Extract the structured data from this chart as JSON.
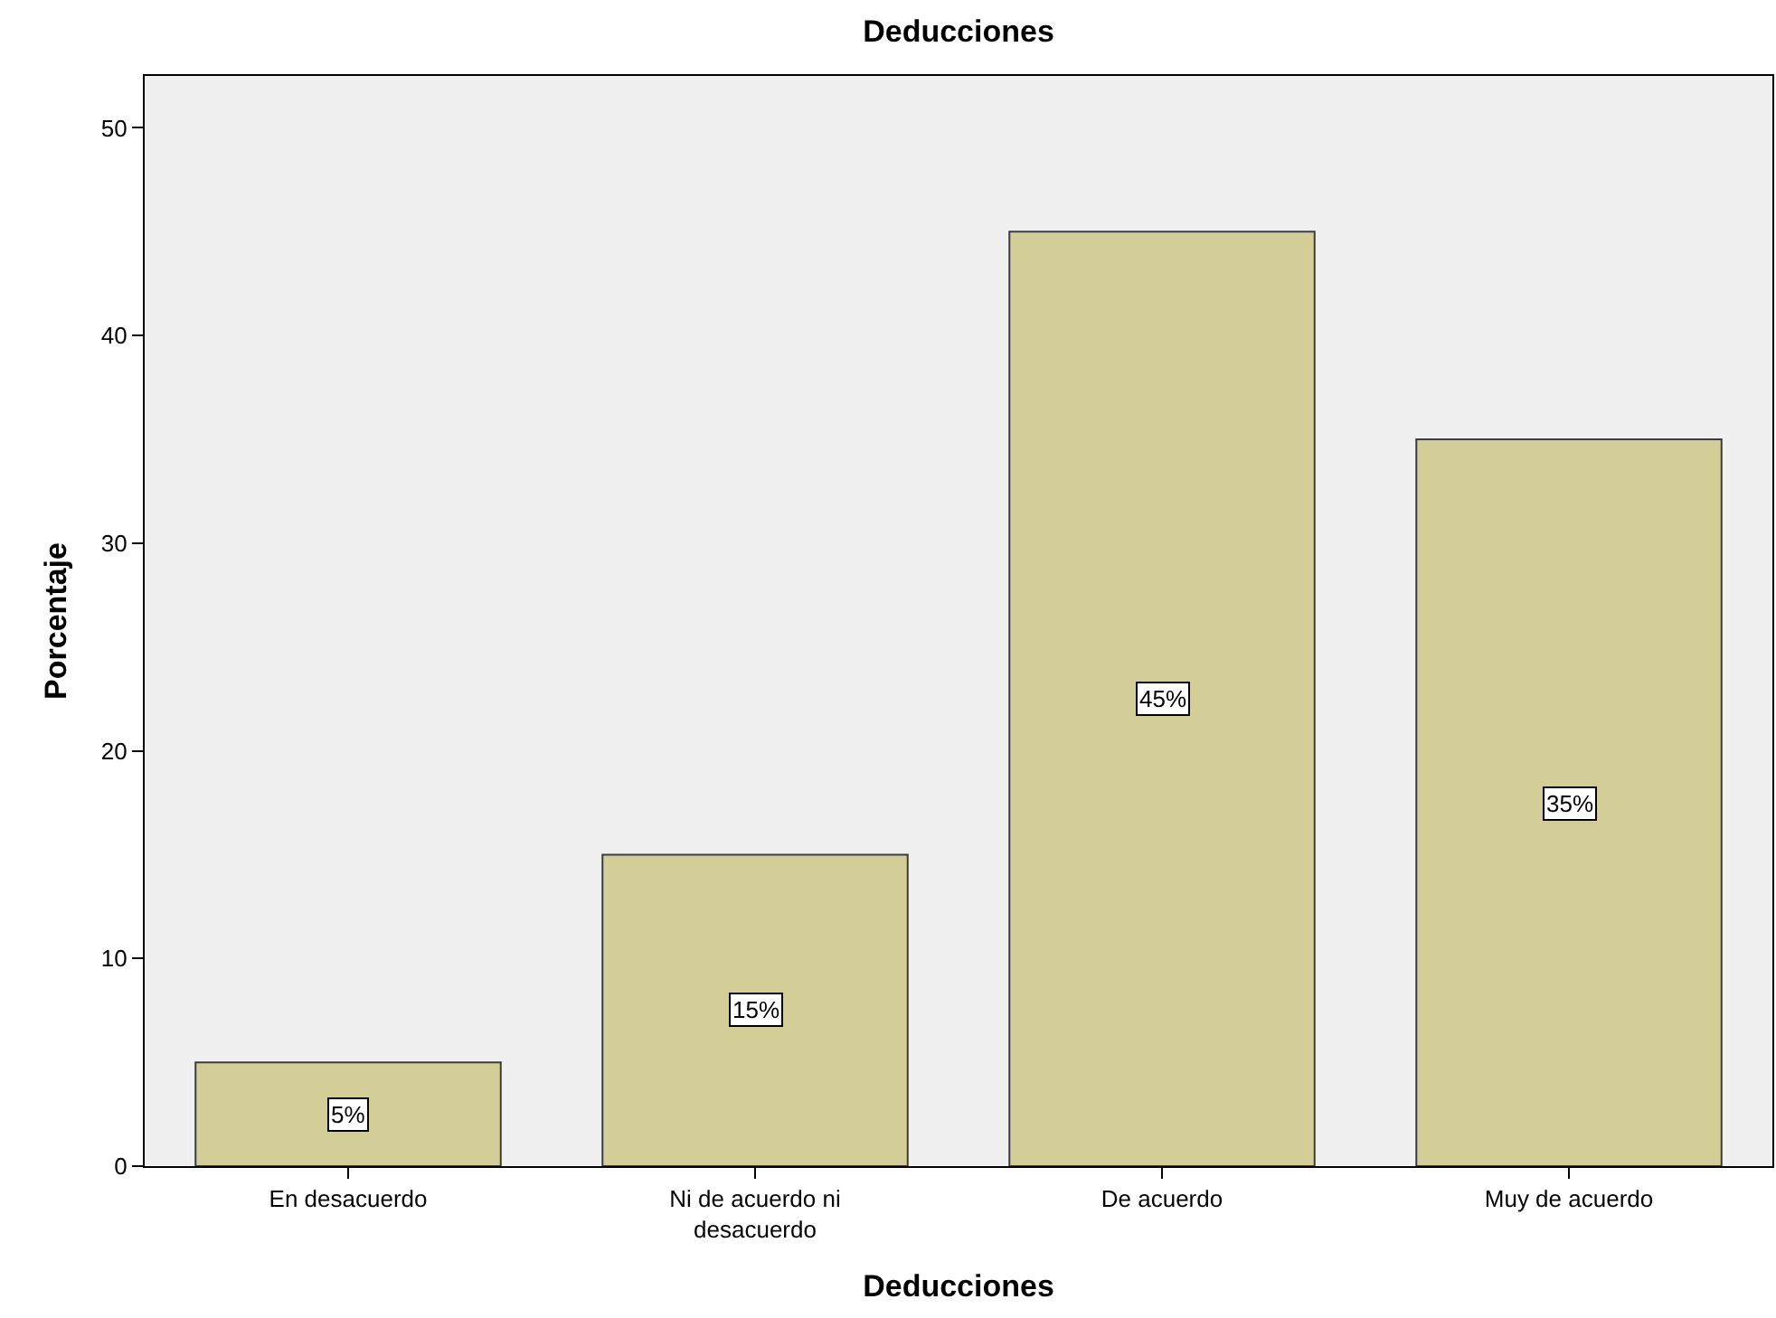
{
  "chart_data": {
    "type": "bar",
    "title": "Deducciones",
    "xlabel": "Deducciones",
    "ylabel": "Porcentaje",
    "categories": [
      "En desacuerdo",
      "Ni de acuerdo ni desacuerdo",
      "De acuerdo",
      "Muy de acuerdo"
    ],
    "values": [
      5,
      15,
      45,
      35
    ],
    "value_labels": [
      "5%",
      "15%",
      "45%",
      "35%"
    ],
    "color": "#d3ce97",
    "ylim": [
      0,
      52.5
    ],
    "yticks": [
      0,
      10,
      20,
      30,
      40,
      50
    ],
    "grid": false
  }
}
